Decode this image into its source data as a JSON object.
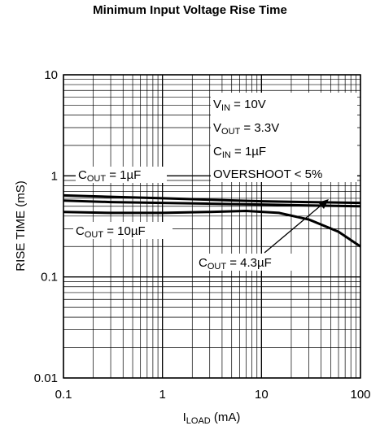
{
  "chart_data": {
    "type": "line",
    "title": "Minimum Input Voltage Rise Time",
    "xlabel": {
      "main": "I",
      "sub": "LOAD",
      "unit": " (mA)"
    },
    "ylabel": "RISE TIME (mS)",
    "xscale": "log",
    "yscale": "log",
    "xlim": [
      0.1,
      100
    ],
    "ylim": [
      0.01,
      10
    ],
    "grid": true,
    "x_tick_labels": [
      "0.1",
      "1",
      "10",
      "100"
    ],
    "y_tick_labels": [
      "0.01",
      "0.1",
      "1",
      "10"
    ],
    "conditions": [
      {
        "main": "V",
        "sub": "IN",
        "rest": " = 10V"
      },
      {
        "main": "V",
        "sub": "OUT",
        "rest": " = 3.3V"
      },
      {
        "main": "C",
        "sub": "IN",
        "rest": " = 1µF"
      },
      {
        "main": "OVERSHOOT < 5%",
        "sub": "",
        "rest": ""
      }
    ],
    "series": [
      {
        "label_main": "C",
        "label_sub": "OUT",
        "label_rest": " = 1µF",
        "x": [
          0.1,
          0.3,
          1,
          3,
          10,
          30,
          100
        ],
        "y": [
          0.64,
          0.62,
          0.6,
          0.58,
          0.56,
          0.55,
          0.54
        ]
      },
      {
        "label_main": "C",
        "label_sub": "OUT",
        "label_rest": " = 4.3µF",
        "x": [
          0.1,
          0.3,
          1,
          3,
          10,
          30,
          100
        ],
        "y": [
          0.57,
          0.55,
          0.54,
          0.53,
          0.52,
          0.51,
          0.5
        ]
      },
      {
        "label_main": "C",
        "label_sub": "OUT",
        "label_rest": " = 10µF",
        "x": [
          0.1,
          0.3,
          1,
          3,
          7,
          15,
          30,
          60,
          100
        ],
        "y": [
          0.44,
          0.43,
          0.43,
          0.44,
          0.45,
          0.43,
          0.37,
          0.28,
          0.2
        ]
      }
    ]
  }
}
